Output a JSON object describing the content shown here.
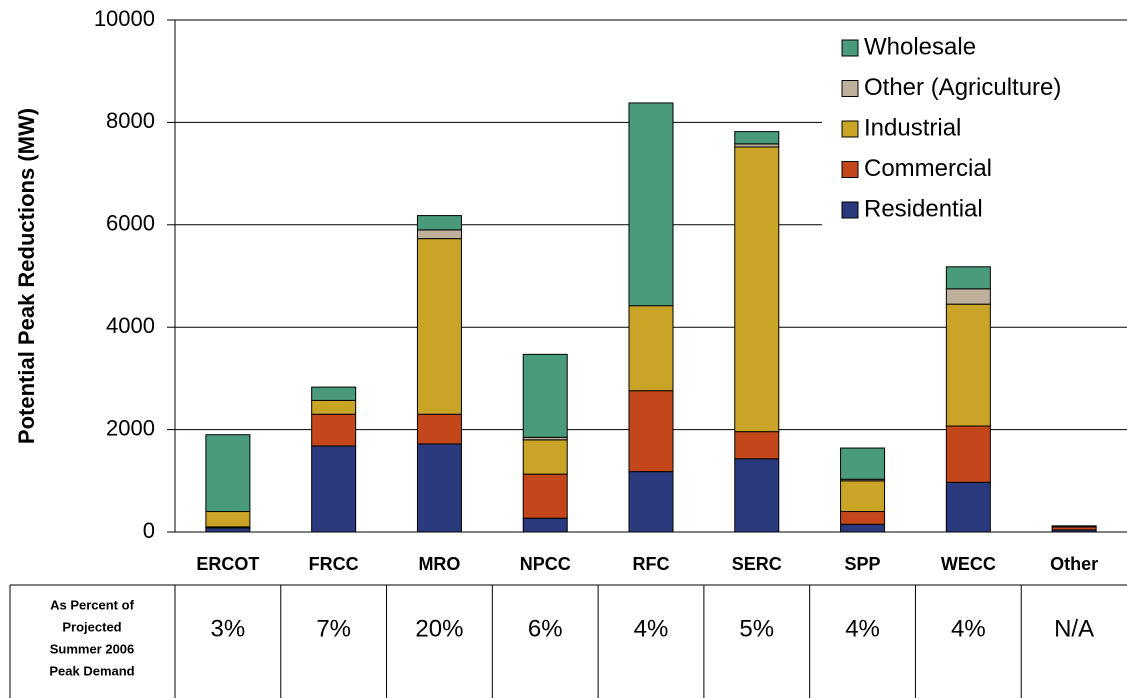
{
  "chart_data": {
    "type": "stacked_bar",
    "ylabel": "Potential Peak Reductions (MW)",
    "categories": [
      "ERCOT",
      "FRCC",
      "MRO",
      "NPCC",
      "RFC",
      "SERC",
      "SPP",
      "WECC",
      "Other"
    ],
    "series": [
      {
        "name": "Residential",
        "color": "#2b3a7e",
        "values": [
          80,
          1680,
          1720,
          270,
          1180,
          1430,
          150,
          970,
          40
        ]
      },
      {
        "name": "Commercial",
        "color": "#c4471b",
        "values": [
          20,
          620,
          580,
          860,
          1580,
          530,
          250,
          1100,
          60
        ]
      },
      {
        "name": "Industrial",
        "color": "#c9a427",
        "values": [
          300,
          270,
          3430,
          670,
          1660,
          5560,
          600,
          2380,
          20
        ]
      },
      {
        "name": "Other (Agriculture)",
        "color": "#bfb09c",
        "values": [
          0,
          0,
          170,
          50,
          0,
          60,
          30,
          300,
          0
        ]
      },
      {
        "name": "Wholesale",
        "color": "#4a9a7c",
        "values": [
          1500,
          260,
          280,
          1620,
          3960,
          240,
          610,
          430,
          0
        ]
      }
    ],
    "ylim": [
      0,
      10000
    ],
    "yticks": [
      0,
      2000,
      4000,
      6000,
      8000,
      10000
    ],
    "grid": true,
    "legend": "top-right",
    "table": {
      "row_label": [
        "As Percent of",
        "Projected",
        "Summer 2006",
        "Peak Demand"
      ],
      "cells": [
        "3%",
        "7%",
        "20%",
        "6%",
        "4%",
        "5%",
        "4%",
        "4%",
        "N/A"
      ]
    }
  }
}
